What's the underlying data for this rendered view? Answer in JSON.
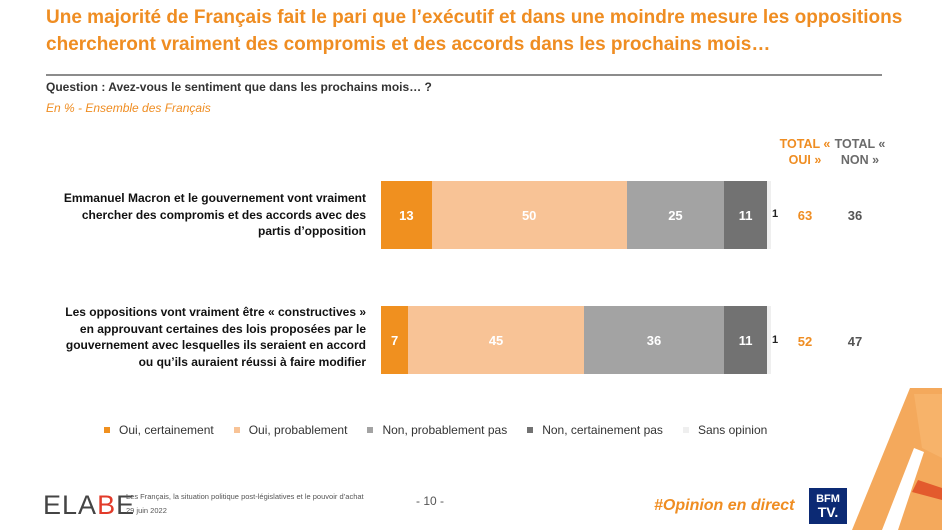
{
  "title": "Une majorité de Français fait le pari que l’exécutif et dans une moindre mesure les oppositions chercheront vraiment des compromis et des accords dans les prochains mois…",
  "question": "Question : Avez-vous le sentiment que dans les prochains mois… ?",
  "unit_note": "En % - Ensemble des Français",
  "headers": {
    "total_oui": "TOTAL « OUI »",
    "total_non": "TOTAL « NON »"
  },
  "colors": {
    "oui_cert": "#f0901f",
    "oui_prob": "#f8c396",
    "non_prob": "#a3a3a3",
    "non_cert": "#727272",
    "sans_op": "#efefef",
    "accent": "#ef8d22"
  },
  "chart_data": {
    "type": "bar",
    "orientation": "horizontal-stacked",
    "unit": "%",
    "categories": [
      "Emmanuel Macron et le gouvernement vont vraiment chercher des compromis et des accords avec des partis d’opposition",
      "Les oppositions vont vraiment être « constructives » en approuvant certaines des lois proposées par le gouvernement avec lesquelles ils seraient en accord ou qu’ils auraient réussi à faire modifier"
    ],
    "series": [
      {
        "name": "Oui, certainement",
        "values": [
          13,
          7
        ]
      },
      {
        "name": "Oui, probablement",
        "values": [
          50,
          45
        ]
      },
      {
        "name": "Non, probablement pas",
        "values": [
          25,
          36
        ]
      },
      {
        "name": "Non, certainement pas",
        "values": [
          11,
          11
        ]
      },
      {
        "name": "Sans opinion",
        "values": [
          1,
          1
        ]
      }
    ],
    "totals": {
      "oui": [
        63,
        52
      ],
      "non": [
        36,
        47
      ]
    }
  },
  "footer": {
    "logo_text": "ELABE",
    "source": "Les Français, la situation politique post-législatives et le pouvoir d’achat",
    "date": "29 juin 2022",
    "page": "- 10 -",
    "hashtag": "#Opinion en direct",
    "bfm_line1": "BFM",
    "bfm_line2": "TV."
  }
}
